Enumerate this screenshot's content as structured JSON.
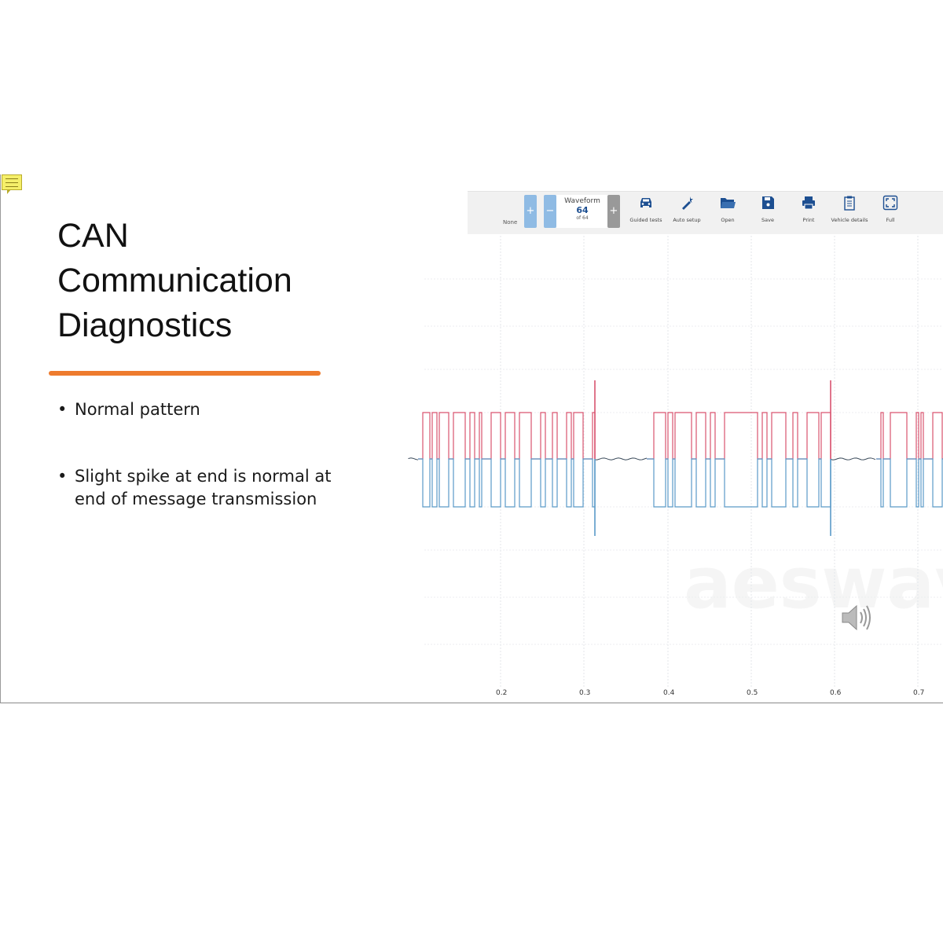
{
  "slide": {
    "title_lines": [
      "CAN",
      "Communication",
      "Diagnostics"
    ],
    "bullets": [
      "Normal pattern",
      "Slight spike at end is normal at",
      "end of message transmission"
    ],
    "accent_color": "#ee7b2e"
  },
  "toolbar": {
    "none_label": "None",
    "plus": "+",
    "minus": "−",
    "waveform_label": "Waveform",
    "waveform_number": "64",
    "waveform_of": "of 64",
    "buttons": [
      {
        "label": "Guided tests",
        "icon": "car-icon"
      },
      {
        "label": "Auto setup",
        "icon": "magic-wand-icon"
      },
      {
        "label": "Open",
        "icon": "folder-icon"
      },
      {
        "label": "Save",
        "icon": "save-icon"
      },
      {
        "label": "Print",
        "icon": "printer-icon"
      },
      {
        "label": "Vehicle details",
        "icon": "clipboard-icon"
      },
      {
        "label": "Full",
        "icon": "fullscreen-icon"
      }
    ]
  },
  "scope": {
    "x_ticks": [
      "0.2",
      "0.3",
      "0.4",
      "0.5",
      "0.6",
      "0.7"
    ],
    "can_high_color": "#d9536f",
    "can_low_color": "#5a9ac8",
    "idle_color": "#3a4a5a"
  },
  "watermark": "aeswave.com"
}
